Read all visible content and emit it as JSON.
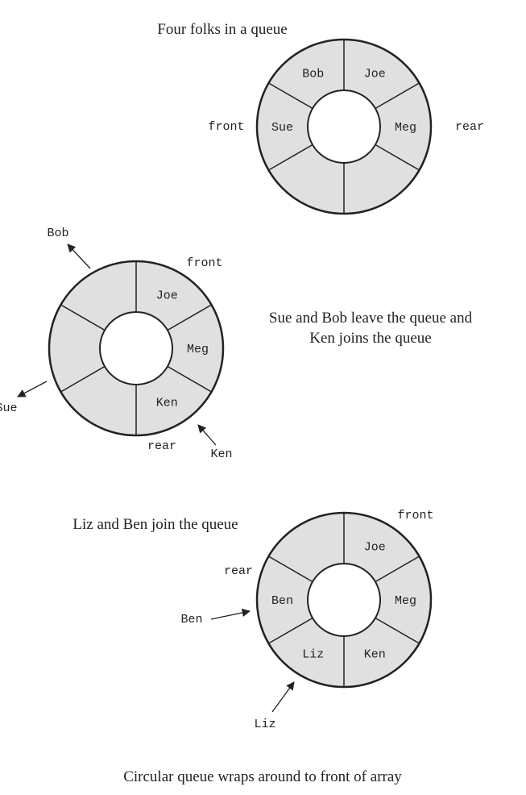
{
  "diagram_1": {
    "caption": "Four folks in a queue",
    "slots": [
      "Joe",
      "Meg",
      "",
      "",
      "Sue",
      "Bob"
    ],
    "front_label": "front",
    "rear_label": "rear"
  },
  "diagram_2": {
    "caption_line1": "Sue and Bob leave the queue and",
    "caption_line2": "Ken joins the queue",
    "slots": [
      "Joe",
      "Meg",
      "Ken",
      "",
      "",
      ""
    ],
    "front_label": "front",
    "rear_label": "rear",
    "leaving_1": "Bob",
    "leaving_2": "Sue",
    "joining": "Ken"
  },
  "diagram_3": {
    "caption": "Liz and Ben join the queue",
    "slots": [
      "Joe",
      "Meg",
      "Ken",
      "Liz",
      "Ben",
      ""
    ],
    "front_label": "front",
    "rear_label": "rear",
    "joining_1": "Ben",
    "joining_2": "Liz"
  },
  "footer_caption": "Circular queue wraps around to front of array",
  "colors": {
    "ring_fill": "#e0e0e0",
    "hub_fill": "#ffffff",
    "stroke": "#222222"
  }
}
